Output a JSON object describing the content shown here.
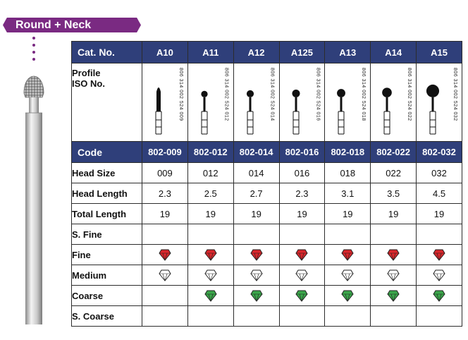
{
  "banner": "Round + Neck",
  "colors": {
    "accent": "#7a2a82",
    "navy": "#2f3f7a",
    "fine": "#d9262b",
    "coarse": "#3aa64a"
  },
  "table": {
    "cat_label": "Cat. No.",
    "profile_label_1": "Profile",
    "profile_label_2": "ISO No.",
    "code_label": "Code",
    "columns": [
      {
        "cat": "A10",
        "iso": "806 314 002 524 009",
        "code": "802-009",
        "head_size": "009",
        "head_length": "2.3",
        "total_length": "19",
        "head": 0.9
      },
      {
        "cat": "A11",
        "iso": "806 314 002 524 012",
        "code": "802-012",
        "head_size": "012",
        "head_length": "2.5",
        "total_length": "19",
        "head": 1.2
      },
      {
        "cat": "A12",
        "iso": "806 314 002 524 014",
        "code": "802-014",
        "head_size": "014",
        "head_length": "2.7",
        "total_length": "19",
        "head": 1.4
      },
      {
        "cat": "A125",
        "iso": "806 314 002 524 016",
        "code": "802-016",
        "head_size": "016",
        "head_length": "2.3",
        "total_length": "19",
        "head": 1.6
      },
      {
        "cat": "A13",
        "iso": "806 314 002 524 018",
        "code": "802-018",
        "head_size": "018",
        "head_length": "3.1",
        "total_length": "19",
        "head": 1.8
      },
      {
        "cat": "A14",
        "iso": "806 314 002 524 022",
        "code": "802-022",
        "head_size": "022",
        "head_length": "3.5",
        "total_length": "19",
        "head": 2.2
      },
      {
        "cat": "A15",
        "iso": "806 314 002 524 032",
        "code": "802-032",
        "head_size": "032",
        "head_length": "4.5",
        "total_length": "19",
        "head": 3.2
      }
    ],
    "rows": [
      {
        "label": "Head Size",
        "key": "head_size"
      },
      {
        "label": "Head Length",
        "key": "head_length"
      },
      {
        "label": "Total Length",
        "key": "total_length"
      }
    ],
    "grits": [
      {
        "label": "S. Fine",
        "type": "none",
        "present": [
          0,
          0,
          0,
          0,
          0,
          0,
          0
        ]
      },
      {
        "label": "Fine",
        "type": "fine",
        "present": [
          1,
          1,
          1,
          1,
          1,
          1,
          1
        ]
      },
      {
        "label": "Medium",
        "type": "medium",
        "present": [
          1,
          1,
          1,
          1,
          1,
          1,
          1
        ]
      },
      {
        "label": "Coarse",
        "type": "coarse",
        "present": [
          0,
          1,
          1,
          1,
          1,
          1,
          1
        ]
      },
      {
        "label": "S. Coarse",
        "type": "none",
        "present": [
          0,
          0,
          0,
          0,
          0,
          0,
          0
        ]
      }
    ]
  }
}
